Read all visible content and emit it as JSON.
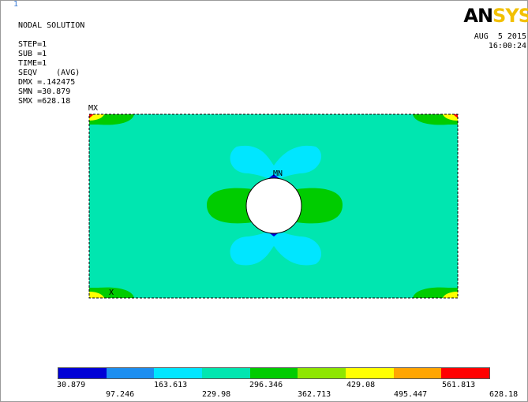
{
  "window_number": "1",
  "header": {
    "title": "NODAL SOLUTION",
    "step": "STEP=1",
    "sub": "SUB =1",
    "time": "TIME=1",
    "seqv": "SEQV    (AVG)",
    "dmx": "DMX =.142475",
    "smn": "SMN =30.879",
    "smx": "SMX =628.18"
  },
  "logo": {
    "part1": "AN",
    "part2": "SYS"
  },
  "datetime": {
    "date": "AUG  5 2015",
    "time": "16:00:24"
  },
  "plot_labels": {
    "mx": "MX",
    "mn": "MN",
    "x": "X"
  },
  "legend": {
    "colors": [
      "#0000d6",
      "#1c8ef0",
      "#00e6ff",
      "#00e6b0",
      "#00cc00",
      "#8ee600",
      "#ffff00",
      "#ffa500",
      "#ff0000"
    ],
    "labels_top": [
      "30.879",
      "163.613",
      "296.346",
      "429.08",
      "561.813"
    ],
    "labels_bottom": [
      "97.246",
      "229.98",
      "362.713",
      "495.447",
      "628.18"
    ]
  }
}
